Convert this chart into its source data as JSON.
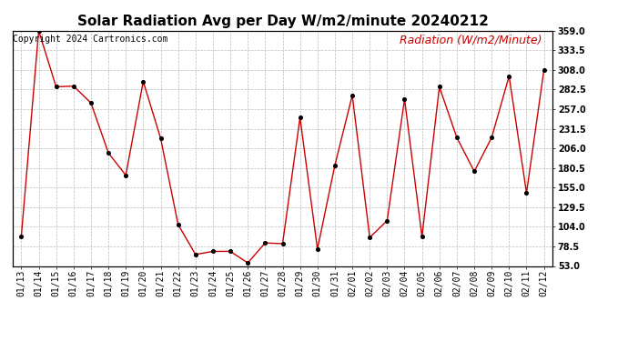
{
  "title": "Solar Radiation Avg per Day W/m2/minute 20240212",
  "copyright": "Copyright 2024 Cartronics.com",
  "ylabel": "Radiation (W/m2/Minute)",
  "dates": [
    "01/13",
    "01/14",
    "01/15",
    "01/16",
    "01/17",
    "01/18",
    "01/19",
    "01/20",
    "01/21",
    "01/22",
    "01/23",
    "01/24",
    "01/25",
    "01/26",
    "01/27",
    "01/28",
    "01/29",
    "01/30",
    "01/31",
    "02/01",
    "02/02",
    "02/03",
    "02/04",
    "02/05",
    "02/06",
    "02/07",
    "02/08",
    "02/09",
    "02/10",
    "02/11",
    "02/12"
  ],
  "values": [
    91,
    359,
    286,
    287,
    265,
    200,
    171,
    293,
    219,
    107,
    68,
    72,
    72,
    57,
    83,
    82,
    246,
    75,
    184,
    275,
    90,
    112,
    270,
    91,
    286,
    220,
    176,
    220,
    300,
    148,
    308
  ],
  "line_color": "#cc0000",
  "marker_color": "#000000",
  "bg_color": "#ffffff",
  "plot_bg_color": "#ffffff",
  "grid_color": "#bbbbbb",
  "title_color": "#000000",
  "copyright_color": "#000000",
  "ylabel_color": "#cc0000",
  "ylim_min": 53.0,
  "ylim_max": 359.0,
  "yticks": [
    53.0,
    78.5,
    104.0,
    129.5,
    155.0,
    180.5,
    206.0,
    231.5,
    257.0,
    282.5,
    308.0,
    333.5,
    359.0
  ],
  "title_fontsize": 11,
  "copyright_fontsize": 7,
  "ylabel_fontsize": 9,
  "tick_fontsize": 7,
  "figwidth": 6.9,
  "figheight": 3.75,
  "dpi": 100
}
